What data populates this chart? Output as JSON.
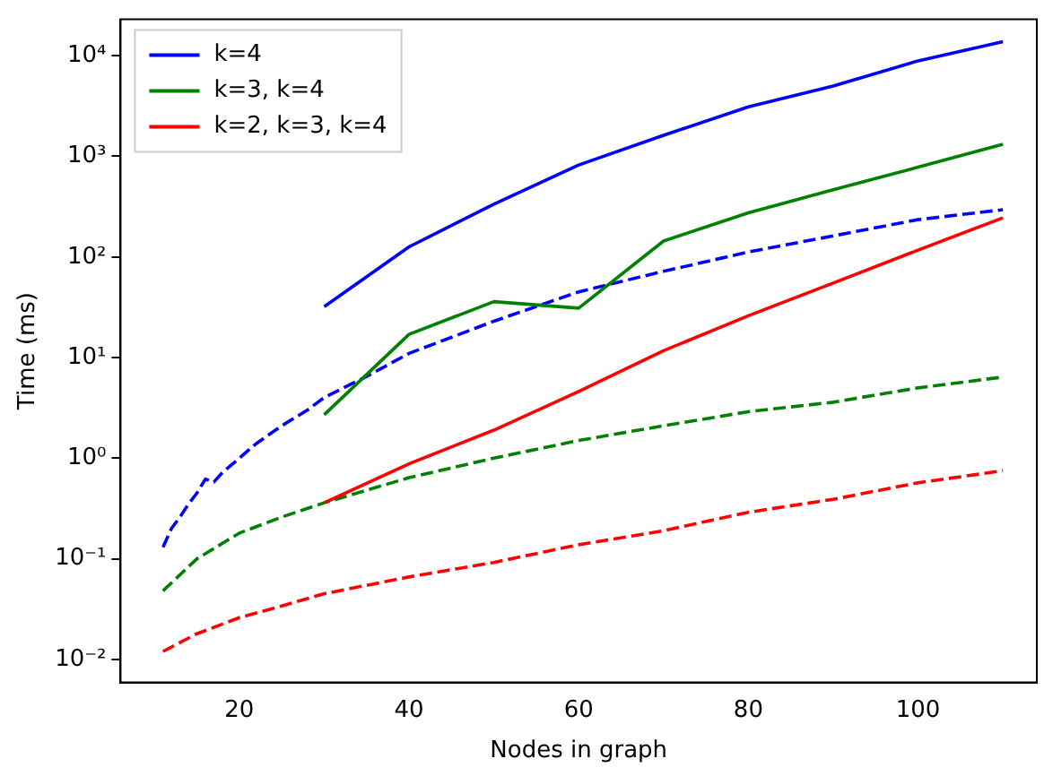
{
  "chart_data": {
    "type": "line",
    "xlabel": "Nodes in graph",
    "ylabel": "Time (ms)",
    "log": "y",
    "grid": false,
    "legend": "top left",
    "marker": "none",
    "xlim": [
      6,
      114
    ],
    "xticks": [
      20,
      40,
      60,
      80,
      100
    ],
    "ylim": [
      0.0059,
      23000
    ],
    "yticks": [
      {
        "value": 0.01,
        "label": "10⁻²"
      },
      {
        "value": 0.1,
        "label": "10⁻¹"
      },
      {
        "value": 1,
        "label": "10⁰"
      },
      {
        "value": 10,
        "label": "10¹"
      },
      {
        "value": 100,
        "label": "10²"
      },
      {
        "value": 1000,
        "label": "10³"
      },
      {
        "value": 10000,
        "label": "10⁴"
      }
    ],
    "series": [
      {
        "name": "k=4",
        "color": "#0000ff",
        "line_style": "solid",
        "x": [
          30,
          40,
          50,
          60,
          70,
          80,
          90,
          100,
          110
        ],
        "values": [
          32,
          126,
          335,
          820,
          1620,
          3100,
          5000,
          8900,
          13800
        ]
      },
      {
        "name": "k=3, k=4",
        "color": "#008000",
        "line_style": "solid",
        "x": [
          30,
          40,
          50,
          60,
          70,
          80,
          90,
          100,
          110
        ],
        "values": [
          2.7,
          17,
          36,
          31,
          144,
          275,
          465,
          780,
          1320
        ]
      },
      {
        "name": "k=2, k=3, k=4",
        "color": "#ff0000",
        "line_style": "solid",
        "x": [
          30,
          40,
          50,
          60,
          70,
          80,
          90,
          100,
          110
        ],
        "values": [
          0.36,
          0.88,
          1.9,
          4.6,
          11.7,
          26,
          55,
          117,
          245
        ]
      },
      {
        "color": "#0000ff",
        "line_style": "dashed",
        "x": [
          11,
          12,
          13,
          14,
          15,
          16,
          17,
          18,
          20,
          22,
          25,
          28,
          30,
          35,
          40,
          50,
          60,
          70,
          80,
          90,
          100,
          110
        ],
        "values": [
          0.13,
          0.2,
          0.26,
          0.35,
          0.45,
          0.62,
          0.58,
          0.72,
          1.0,
          1.4,
          2.1,
          3.0,
          4.0,
          6.5,
          11,
          23,
          45,
          72,
          112,
          162,
          235,
          295
        ]
      },
      {
        "color": "#008000",
        "line_style": "dashed",
        "x": [
          11,
          15,
          20,
          25,
          30,
          40,
          50,
          60,
          70,
          80,
          90,
          100,
          110
        ],
        "values": [
          0.048,
          0.1,
          0.18,
          0.26,
          0.36,
          0.64,
          1.0,
          1.5,
          2.1,
          2.9,
          3.6,
          5,
          6.4
        ]
      },
      {
        "color": "#ff0000",
        "line_style": "dashed",
        "x": [
          11,
          15,
          20,
          25,
          30,
          40,
          50,
          60,
          70,
          80,
          90,
          100,
          110
        ],
        "values": [
          0.012,
          0.018,
          0.026,
          0.034,
          0.045,
          0.066,
          0.092,
          0.138,
          0.19,
          0.29,
          0.39,
          0.57,
          0.75
        ]
      }
    ]
  }
}
